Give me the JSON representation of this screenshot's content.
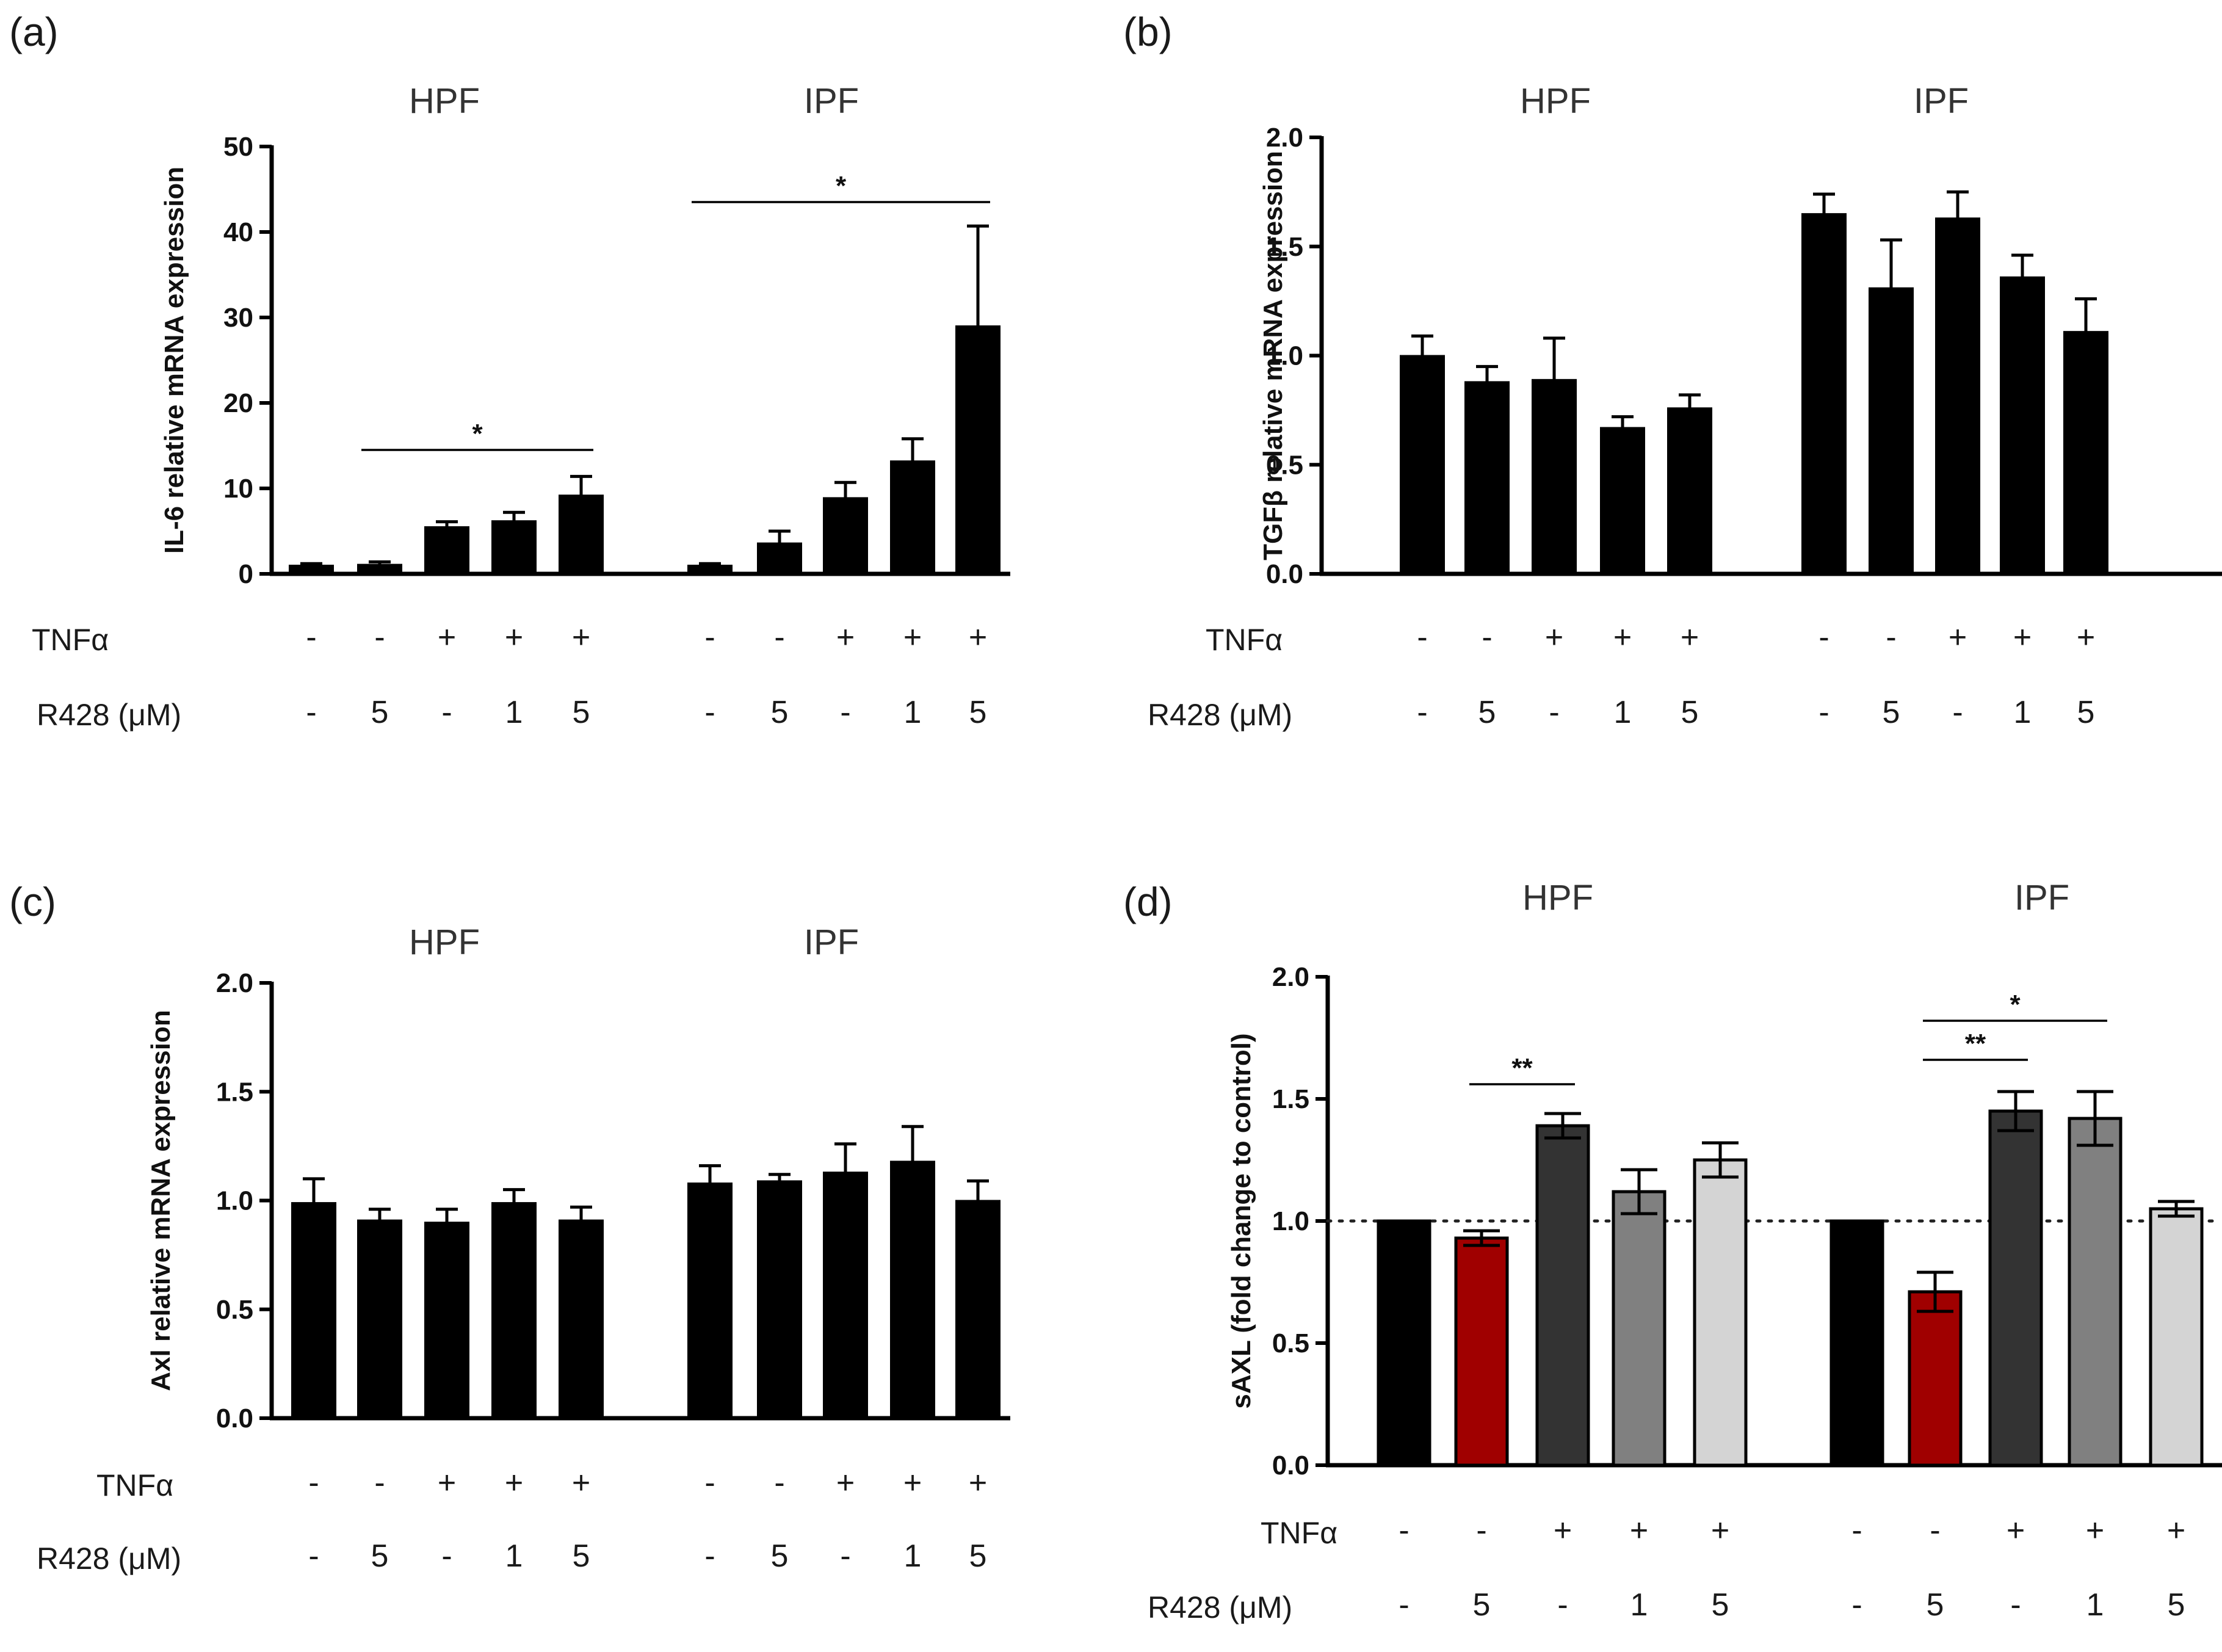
{
  "figure": {
    "rows": [
      {
        "name": "TNFα",
        "values": [
          "-",
          "-",
          "+",
          "+",
          "+",
          "-",
          "-",
          "+",
          "+",
          "+"
        ]
      },
      {
        "name": "R428 (μM)",
        "values": [
          "-",
          "5",
          "-",
          "1",
          "5",
          "-",
          "5",
          "-",
          "1",
          "5"
        ]
      }
    ]
  },
  "chart_data": [
    {
      "panel": "(a)",
      "type": "bar",
      "groups": [
        "HPF",
        "IPF"
      ],
      "ylabel": "IL-6 relative mRNA expression",
      "ylim": [
        0,
        50
      ],
      "yticks": [
        0,
        10,
        20,
        30,
        40,
        50
      ],
      "tick_labels": [
        "0",
        "10",
        "20",
        "30",
        "40",
        "50"
      ],
      "grid": false,
      "dotted_reference": null,
      "series": [
        {
          "name": "HPF",
          "values": [
            1.0,
            1.1,
            5.5,
            6.2,
            9.2
          ],
          "errors": [
            0.2,
            0.3,
            0.6,
            1.0,
            2.2
          ],
          "colors": [
            "#000000",
            "#000000",
            "#000000",
            "#000000",
            "#000000"
          ]
        },
        {
          "name": "IPF",
          "values": [
            1.0,
            3.6,
            8.9,
            13.2,
            29.0
          ],
          "errors": [
            0.2,
            1.4,
            1.8,
            2.6,
            11.7
          ],
          "colors": [
            "#000000",
            "#000000",
            "#000000",
            "#000000",
            "#000000"
          ]
        }
      ],
      "significance": [
        {
          "group": 0,
          "from": 1,
          "to": 4,
          "label": "*",
          "y": 14.5
        },
        {
          "group": 1,
          "from": 0,
          "to": 4,
          "label": "*",
          "y": 43.5
        }
      ]
    },
    {
      "panel": "(b)",
      "type": "bar",
      "groups": [
        "HPF",
        "IPF"
      ],
      "ylabel": "TGFβ relative mRNA expression",
      "ylim": [
        0,
        2.0
      ],
      "yticks": [
        0,
        0.5,
        1.0,
        1.5,
        2.0
      ],
      "tick_labels": [
        "0.0",
        "0.5",
        "1.0",
        "1.5",
        "2.0"
      ],
      "grid": false,
      "dotted_reference": null,
      "series": [
        {
          "name": "HPF",
          "values": [
            1.0,
            0.88,
            0.89,
            0.67,
            0.76
          ],
          "errors": [
            0.09,
            0.07,
            0.19,
            0.05,
            0.06
          ],
          "colors": [
            "#000000",
            "#000000",
            "#000000",
            "#000000",
            "#000000"
          ]
        },
        {
          "name": "IPF",
          "values": [
            1.65,
            1.31,
            1.63,
            1.36,
            1.11
          ],
          "errors": [
            0.09,
            0.22,
            0.12,
            0.1,
            0.15
          ],
          "colors": [
            "#000000",
            "#000000",
            "#000000",
            "#000000",
            "#000000"
          ]
        }
      ],
      "significance": []
    },
    {
      "panel": "(c)",
      "type": "bar",
      "groups": [
        "HPF",
        "IPF"
      ],
      "ylabel": "Axl relative mRNA expression",
      "ylim": [
        0,
        2.0
      ],
      "yticks": [
        0,
        0.5,
        1.0,
        1.5,
        2.0
      ],
      "tick_labels": [
        "0.0",
        "0.5",
        "1.0",
        "1.5",
        "2.0"
      ],
      "grid": false,
      "dotted_reference": null,
      "series": [
        {
          "name": "HPF",
          "values": [
            0.99,
            0.91,
            0.9,
            0.99,
            0.91
          ],
          "errors": [
            0.11,
            0.05,
            0.06,
            0.06,
            0.06
          ],
          "colors": [
            "#000000",
            "#000000",
            "#000000",
            "#000000",
            "#000000"
          ]
        },
        {
          "name": "IPF",
          "values": [
            1.08,
            1.09,
            1.13,
            1.18,
            1.0
          ],
          "errors": [
            0.08,
            0.03,
            0.13,
            0.16,
            0.09
          ],
          "colors": [
            "#000000",
            "#000000",
            "#000000",
            "#000000",
            "#000000"
          ]
        }
      ],
      "significance": []
    },
    {
      "panel": "(d)",
      "type": "bar",
      "groups": [
        "HPF",
        "IPF"
      ],
      "ylabel": "sAXL (fold change to control)",
      "ylim": [
        0,
        2.0
      ],
      "yticks": [
        0,
        0.5,
        1.0,
        1.5,
        2.0
      ],
      "tick_labels": [
        "0.0",
        "0.5",
        "1.0",
        "1.5",
        "2.0"
      ],
      "grid": false,
      "dotted_reference": 1.0,
      "series": [
        {
          "name": "HPF",
          "values": [
            1.0,
            0.93,
            1.39,
            1.12,
            1.25
          ],
          "errors": [
            0.0,
            0.03,
            0.05,
            0.09,
            0.07
          ],
          "colors": [
            "#000000",
            "#a00000",
            "#333333",
            "#808080",
            "#d4d4d4"
          ]
        },
        {
          "name": "IPF",
          "values": [
            1.0,
            0.71,
            1.45,
            1.42,
            1.05
          ],
          "errors": [
            0.0,
            0.08,
            0.08,
            0.11,
            0.03
          ],
          "colors": [
            "#000000",
            "#a00000",
            "#333333",
            "#808080",
            "#d4d4d4"
          ]
        }
      ],
      "significance": [
        {
          "group": 0,
          "from": 1,
          "to": 2,
          "label": "**",
          "y": 1.56
        },
        {
          "group": 1,
          "from": 1,
          "to": 2,
          "label": "**",
          "y": 1.66
        },
        {
          "group": 1,
          "from": 1,
          "to": 3,
          "label": "*",
          "y": 1.82
        }
      ]
    }
  ]
}
